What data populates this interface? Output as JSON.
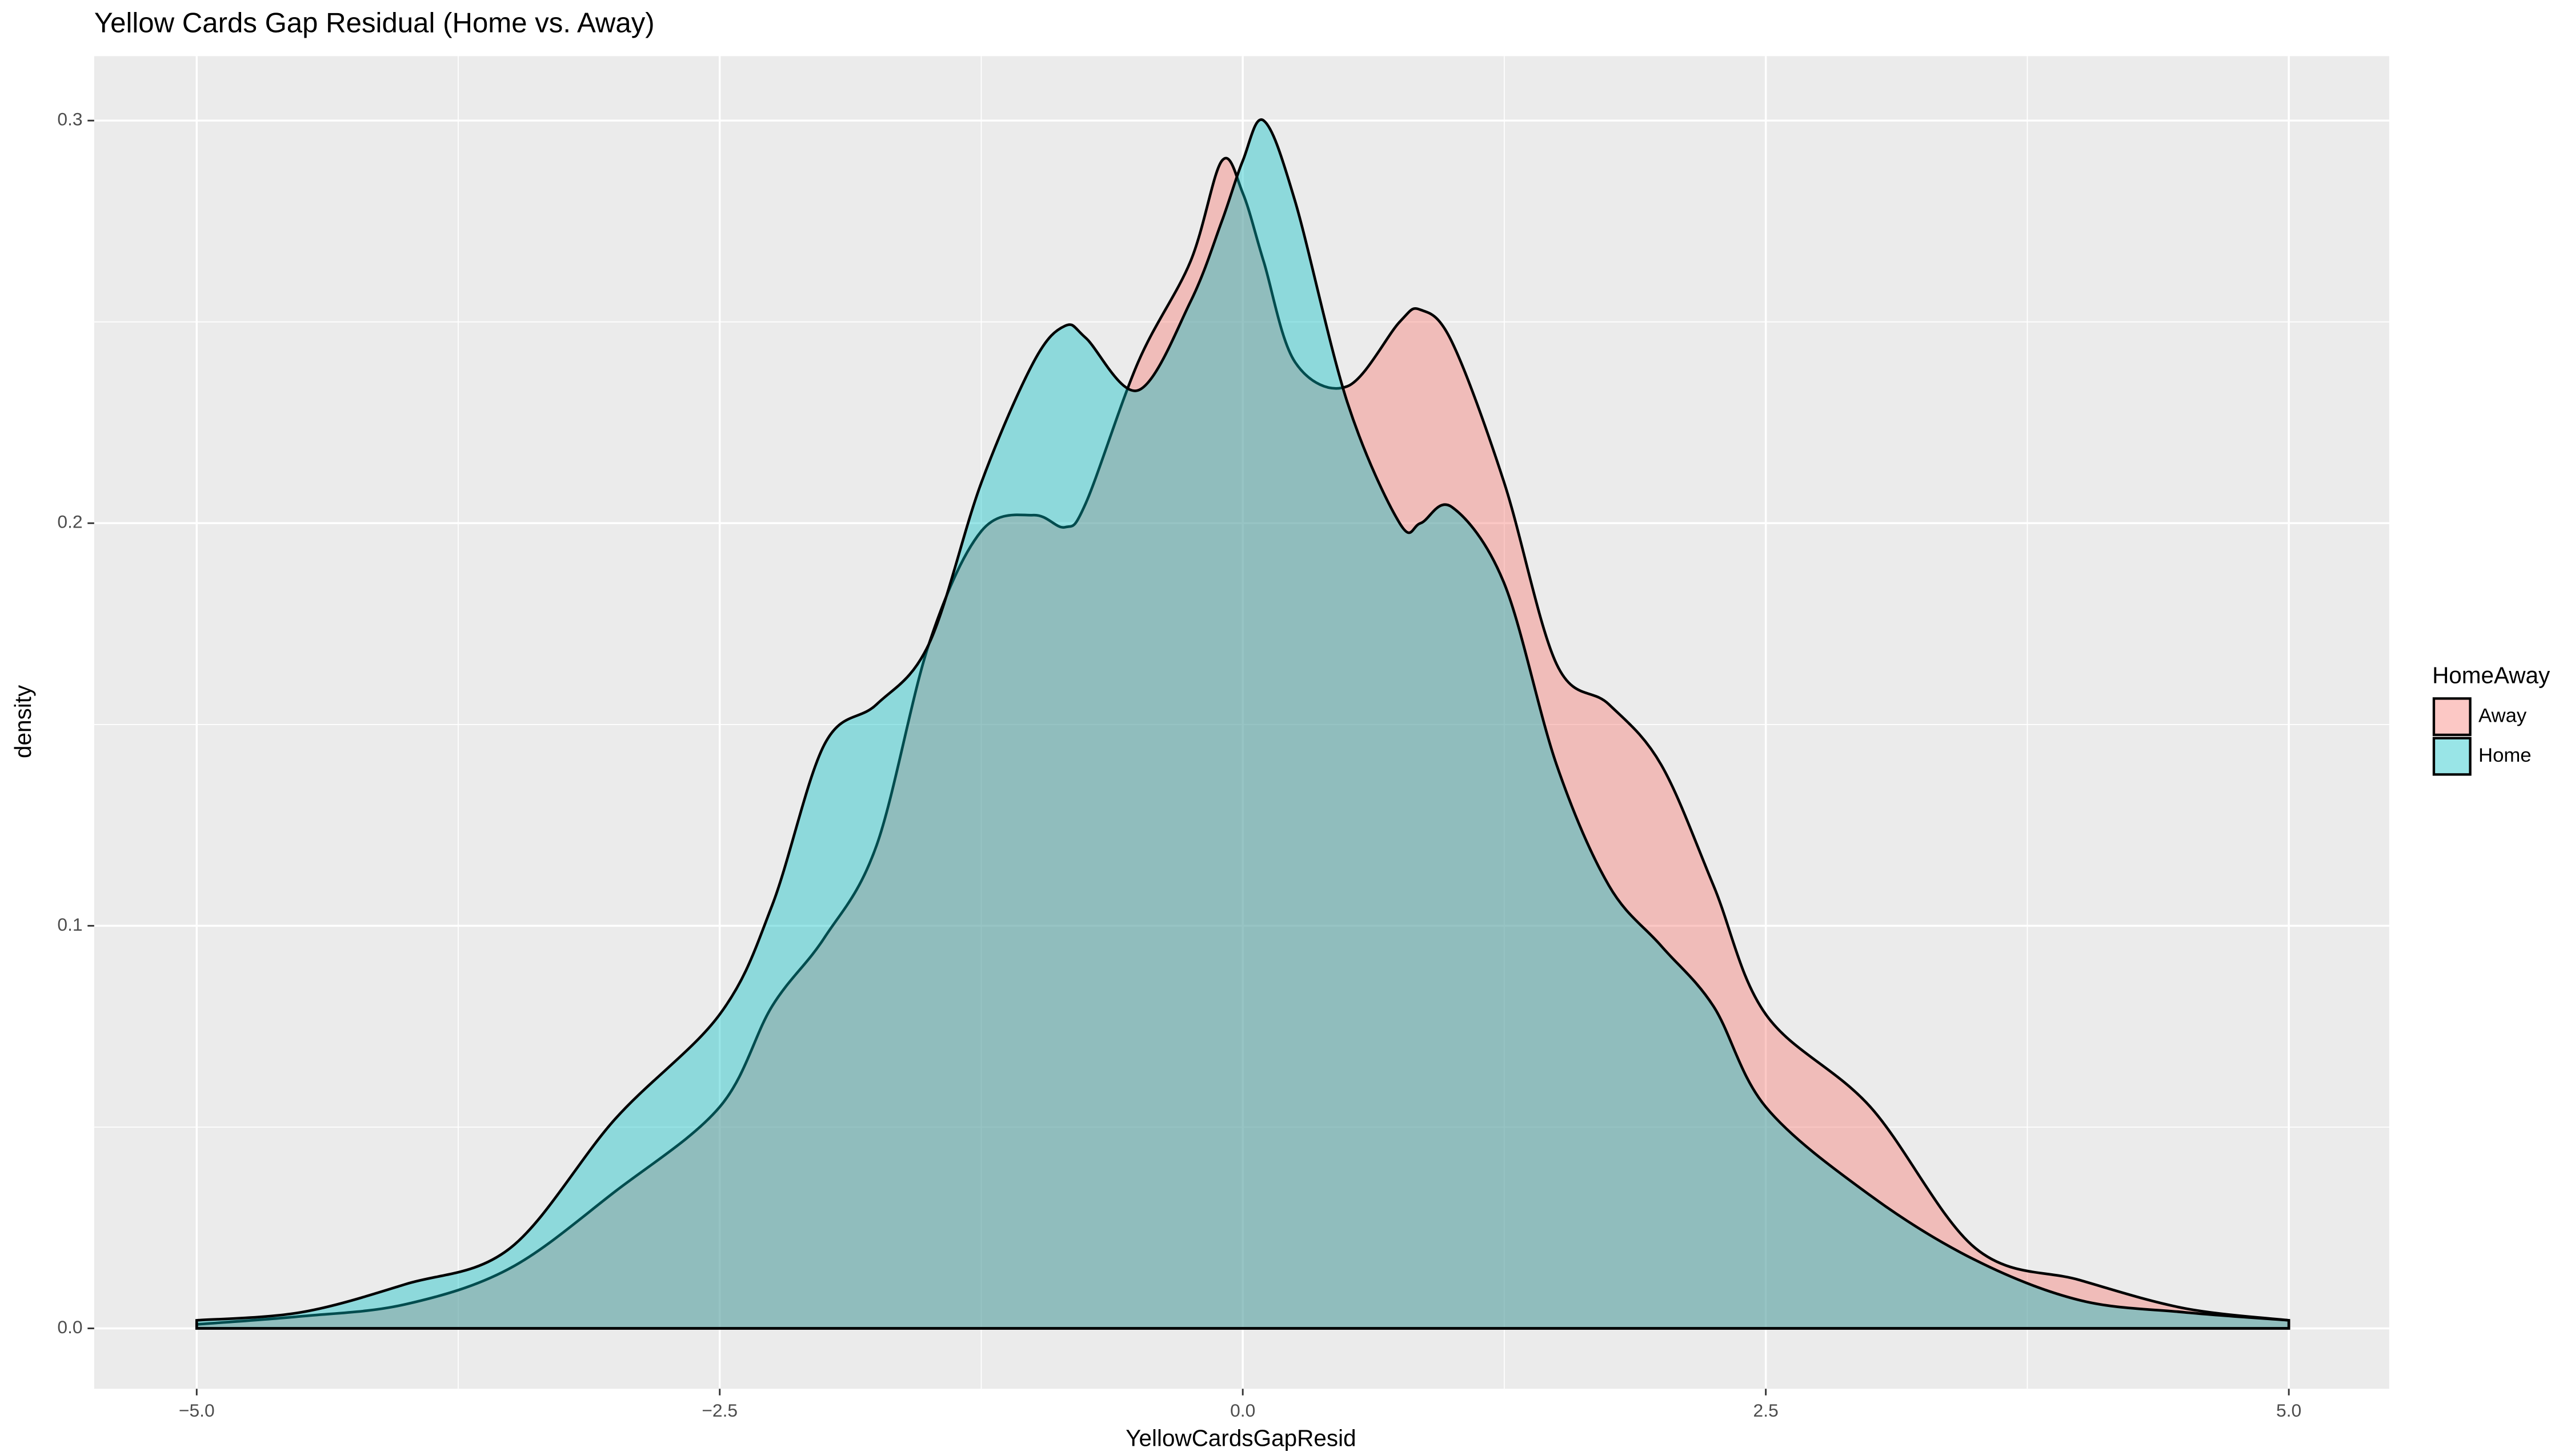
{
  "chart_data": {
    "type": "area",
    "title": "Yellow Cards Gap Residual (Home vs. Away)",
    "x_label": "YellowCardsGapResid",
    "y_label": "density",
    "legend_title": "HomeAway",
    "x": [
      -5,
      -4.5,
      -4,
      -3.5,
      -3,
      -2.5,
      -2.25,
      -2,
      -1.75,
      -1.5,
      -1.25,
      -1,
      -0.85,
      -0.75,
      -0.5,
      -0.25,
      -0.1,
      0,
      0.1,
      0.25,
      0.5,
      0.75,
      0.85,
      1,
      1.25,
      1.5,
      1.75,
      2,
      2.25,
      2.5,
      3,
      3.5,
      4,
      4.5,
      5
    ],
    "series": [
      {
        "name": "Away",
        "color": "#F8766D",
        "values": [
          0.001,
          0.003,
          0.006,
          0.015,
          0.034,
          0.055,
          0.08,
          0.097,
          0.12,
          0.17,
          0.198,
          0.202,
          0.199,
          0.205,
          0.24,
          0.265,
          0.29,
          0.282,
          0.265,
          0.24,
          0.234,
          0.25,
          0.253,
          0.245,
          0.21,
          0.165,
          0.155,
          0.14,
          0.11,
          0.078,
          0.055,
          0.02,
          0.012,
          0.005,
          0.002
        ]
      },
      {
        "name": "Home",
        "color": "#00BFC4",
        "values": [
          0.002,
          0.004,
          0.011,
          0.02,
          0.052,
          0.078,
          0.105,
          0.145,
          0.155,
          0.17,
          0.21,
          0.24,
          0.249,
          0.246,
          0.233,
          0.255,
          0.275,
          0.29,
          0.3,
          0.28,
          0.23,
          0.2,
          0.2,
          0.204,
          0.185,
          0.14,
          0.11,
          0.095,
          0.08,
          0.055,
          0.033,
          0.017,
          0.007,
          0.004,
          0.002
        ]
      }
    ],
    "xlim": [
      -5.49,
      5.48
    ],
    "ylim": [
      -0.015,
      0.316
    ],
    "xticks": [
      {
        "value": -5,
        "label": "−5.0"
      },
      {
        "value": -2.5,
        "label": "−2.5"
      },
      {
        "value": 0,
        "label": "0.0"
      },
      {
        "value": 2.5,
        "label": "2.5"
      },
      {
        "value": 5,
        "label": "5.0"
      }
    ],
    "yticks": [
      {
        "value": 0,
        "label": "0.0"
      },
      0.1,
      0.2,
      0.3
    ],
    "grid": true,
    "opacity": 0.4,
    "legend_position": "right"
  }
}
